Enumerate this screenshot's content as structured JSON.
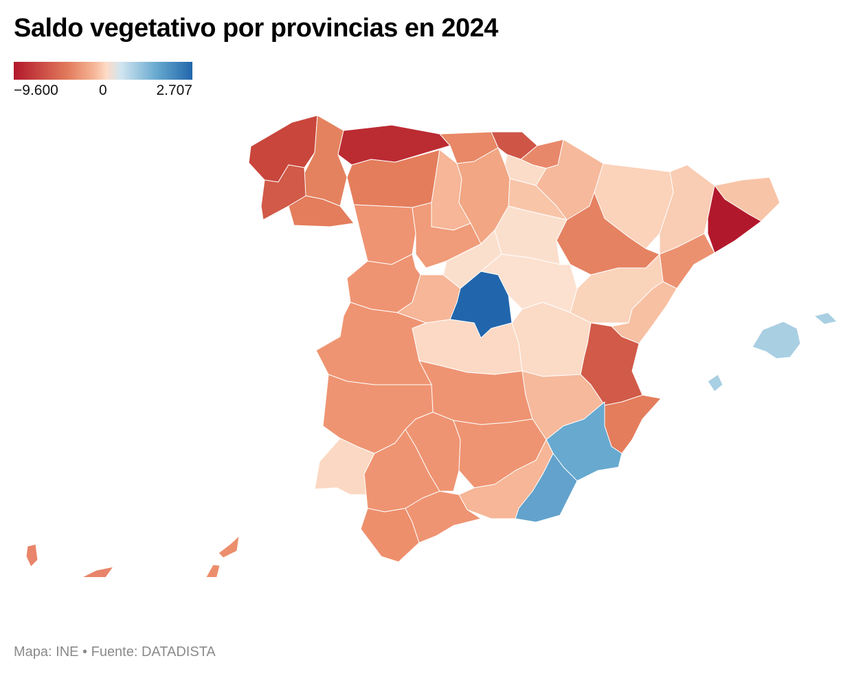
{
  "title": "Saldo vegetativo por provincias en 2024",
  "legend": {
    "min_label": "−9.600",
    "mid_label": "0",
    "max_label": "2.707",
    "min_value": -9600,
    "max_value": 2707,
    "stops": [
      "#b2182b",
      "#d6604d",
      "#f4a582",
      "#fddbc7",
      "#d1e5f0",
      "#67a9cf",
      "#2166ac"
    ]
  },
  "source": "Mapa: INE • Fuente: DATADISTA",
  "colors": {
    "dark_red": "#bb2b32",
    "red": "#d15a48",
    "orange": "#e47d5c",
    "salmon": "#ef9472",
    "light_salmon": "#f6b697",
    "peach": "#f9cdb3",
    "pale": "#fbdfcd",
    "madrid_blue": "#2166ac",
    "mid_blue": "#67a9cf",
    "light_blue": "#a9cfe3"
  },
  "regions": [
    {
      "name": "A Coruña",
      "color": "#c9463c"
    },
    {
      "name": "Lugo",
      "color": "#e4825f"
    },
    {
      "name": "Asturias",
      "color": "#bb2b32"
    },
    {
      "name": "Pontevedra",
      "color": "#d15a48"
    },
    {
      "name": "Ourense",
      "color": "#e47d5c"
    },
    {
      "name": "León",
      "color": "#e47d5c"
    },
    {
      "name": "Cantabria",
      "color": "#e88866"
    },
    {
      "name": "Bizkaia",
      "color": "#cf5547"
    },
    {
      "name": "Gipuzkoa",
      "color": "#e8886a"
    },
    {
      "name": "Araba/Álava",
      "color": "#fbdcc8"
    },
    {
      "name": "Navarra",
      "color": "#f6b99c"
    },
    {
      "name": "Huesca",
      "color": "#fbd2ba"
    },
    {
      "name": "Lleida",
      "color": "#f9cdb3"
    },
    {
      "name": "Girona",
      "color": "#f8c4a8"
    },
    {
      "name": "Barcelona",
      "color": "#b2182b"
    },
    {
      "name": "Tarragona",
      "color": "#ec9170"
    },
    {
      "name": "Palencia",
      "color": "#f6b697"
    },
    {
      "name": "Burgos",
      "color": "#f2a683"
    },
    {
      "name": "La Rioja",
      "color": "#f8c5a9"
    },
    {
      "name": "Zaragoza",
      "color": "#e58262"
    },
    {
      "name": "Zamora",
      "color": "#ef9472"
    },
    {
      "name": "Valladolid",
      "color": "#f09b79"
    },
    {
      "name": "Soria",
      "color": "#fbdfcd"
    },
    {
      "name": "Salamanca",
      "color": "#ef9472"
    },
    {
      "name": "Segovia",
      "color": "#fbdfcd"
    },
    {
      "name": "Ávila",
      "color": "#f6b697"
    },
    {
      "name": "Guadalajara",
      "color": "#fce1d0"
    },
    {
      "name": "Teruel",
      "color": "#fad3bb"
    },
    {
      "name": "Castellón",
      "color": "#f7c0a3"
    },
    {
      "name": "Madrid",
      "color": "#2166ac"
    },
    {
      "name": "Cuenca",
      "color": "#fbdac6"
    },
    {
      "name": "Cáceres",
      "color": "#ef9472"
    },
    {
      "name": "Toledo",
      "color": "#fbd9c4"
    },
    {
      "name": "Valencia",
      "color": "#d15a48"
    },
    {
      "name": "Badajoz",
      "color": "#ef9472"
    },
    {
      "name": "Ciudad Real",
      "color": "#ef9472"
    },
    {
      "name": "Albacete",
      "color": "#f6b99c"
    },
    {
      "name": "Alicante",
      "color": "#e47d5c"
    },
    {
      "name": "Murcia",
      "color": "#67a9cf"
    },
    {
      "name": "Huelva",
      "color": "#fbd8c3"
    },
    {
      "name": "Sevilla",
      "color": "#ef9472"
    },
    {
      "name": "Córdoba",
      "color": "#ef9472"
    },
    {
      "name": "Jaén",
      "color": "#ef9472"
    },
    {
      "name": "Granada",
      "color": "#f6b697"
    },
    {
      "name": "Almería",
      "color": "#62a2cc"
    },
    {
      "name": "Cádiz",
      "color": "#ee8f6c"
    },
    {
      "name": "Málaga",
      "color": "#ef9472"
    },
    {
      "name": "Illes Balears",
      "color": "#a9cfe3"
    },
    {
      "name": "Santa Cruz de Tenerife",
      "color": "#e8856a"
    },
    {
      "name": "Las Palmas",
      "color": "#ec8e6c"
    }
  ]
}
